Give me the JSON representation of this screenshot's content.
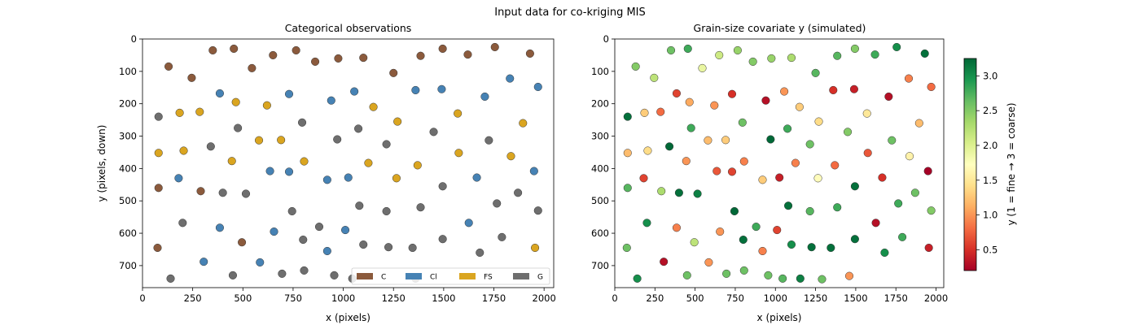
{
  "figure_title": "Input data for co-kriging MIS",
  "colors": {
    "C": "#8b5a3c",
    "Cl": "#4682b4",
    "FS": "#daa520",
    "G": "#6e6e6e"
  },
  "chart_data": [
    {
      "type": "scatter",
      "title": "Categorical observations",
      "xlabel": "x (pixels)",
      "ylabel": "y (pixels, down)",
      "xlim": [
        0,
        2048
      ],
      "ylim": [
        768,
        0
      ],
      "xticks": [
        0,
        250,
        500,
        750,
        1000,
        1250,
        1500,
        1750,
        2000
      ],
      "yticks": [
        0,
        100,
        200,
        300,
        400,
        500,
        600,
        700
      ],
      "legend": {
        "placement": "bottom-right",
        "entries": [
          "C",
          "Cl",
          "FS",
          "G"
        ]
      },
      "series": [
        {
          "name": "C",
          "points": [
            [
              130,
              85
            ],
            [
              245,
              120
            ],
            [
              350,
              35
            ],
            [
              455,
              30
            ],
            [
              545,
              90
            ],
            [
              650,
              50
            ],
            [
              765,
              35
            ],
            [
              860,
              70
            ],
            [
              975,
              60
            ],
            [
              1100,
              58
            ],
            [
              1250,
              105
            ],
            [
              1385,
              52
            ],
            [
              1495,
              30
            ],
            [
              1620,
              48
            ],
            [
              1755,
              25
            ],
            [
              1930,
              45
            ],
            [
              80,
              460
            ],
            [
              290,
              470
            ],
            [
              75,
              645
            ],
            [
              495,
              628
            ]
          ]
        },
        {
          "name": "Cl",
          "points": [
            [
              385,
              168
            ],
            [
              730,
              170
            ],
            [
              940,
              190
            ],
            [
              1055,
              162
            ],
            [
              1360,
              158
            ],
            [
              1490,
              155
            ],
            [
              1705,
              178
            ],
            [
              1830,
              122
            ],
            [
              1970,
              148
            ],
            [
              180,
              430
            ],
            [
              635,
              408
            ],
            [
              730,
              410
            ],
            [
              920,
              435
            ],
            [
              1025,
              428
            ],
            [
              1665,
              428
            ],
            [
              1950,
              408
            ],
            [
              385,
              583
            ],
            [
              655,
              595
            ],
            [
              1010,
              590
            ],
            [
              1625,
              568
            ],
            [
              305,
              688
            ],
            [
              585,
              690
            ],
            [
              920,
              655
            ]
          ]
        },
        {
          "name": "FS",
          "points": [
            [
              185,
              228
            ],
            [
              285,
              225
            ],
            [
              465,
              195
            ],
            [
              620,
              205
            ],
            [
              1150,
              210
            ],
            [
              1570,
              230
            ],
            [
              1895,
              260
            ],
            [
              80,
              352
            ],
            [
              205,
              345
            ],
            [
              580,
              313
            ],
            [
              690,
              312
            ],
            [
              1270,
              255
            ],
            [
              1575,
              352
            ],
            [
              445,
              377
            ],
            [
              805,
              378
            ],
            [
              1125,
              383
            ],
            [
              1370,
              390
            ],
            [
              1835,
              362
            ],
            [
              1265,
              430
            ],
            [
              1955,
              645
            ]
          ]
        },
        {
          "name": "G",
          "points": [
            [
              80,
              240
            ],
            [
              340,
              332
            ],
            [
              475,
              275
            ],
            [
              795,
              258
            ],
            [
              970,
              310
            ],
            [
              1075,
              277
            ],
            [
              1215,
              325
            ],
            [
              1450,
              287
            ],
            [
              1725,
              313
            ],
            [
              400,
              475
            ],
            [
              515,
              478
            ],
            [
              745,
              532
            ],
            [
              1080,
              515
            ],
            [
              1215,
              532
            ],
            [
              1385,
              520
            ],
            [
              1495,
              455
            ],
            [
              1765,
              508
            ],
            [
              1870,
              475
            ],
            [
              1970,
              530
            ],
            [
              200,
              568
            ],
            [
              800,
              620
            ],
            [
              880,
              580
            ],
            [
              1100,
              635
            ],
            [
              1225,
              643
            ],
            [
              1345,
              645
            ],
            [
              1495,
              618
            ],
            [
              1680,
              660
            ],
            [
              1790,
              612
            ],
            [
              140,
              740
            ],
            [
              450,
              730
            ],
            [
              695,
              725
            ],
            [
              805,
              715
            ],
            [
              955,
              730
            ],
            [
              1045,
              740
            ],
            [
              1360,
              740
            ]
          ]
        }
      ]
    },
    {
      "type": "scatter",
      "title": "Grain-size covariate y  (simulated)",
      "xlabel": "x (pixels)",
      "xlim": [
        0,
        2048
      ],
      "ylim": [
        768,
        0
      ],
      "xticks": [
        0,
        250,
        500,
        750,
        1000,
        1250,
        1500,
        1750,
        2000
      ],
      "yticks": [
        0,
        100,
        200,
        300,
        400,
        500,
        600,
        700
      ],
      "colorbar": {
        "label": "y  (1 = fine  →  3 = coarse)",
        "range": [
          0.2,
          3.25
        ],
        "ticks": [
          0.5,
          1.0,
          1.5,
          2.0,
          2.5,
          3.0
        ],
        "tick_labels": [
          "0.5",
          "1.0",
          "1.5",
          "2.0",
          "2.5",
          "3.0"
        ],
        "colormap": "RdYlGn"
      },
      "points": [
        [
          130,
          85,
          2.5
        ],
        [
          245,
          120,
          2.2
        ],
        [
          350,
          35,
          2.6
        ],
        [
          455,
          30,
          2.8
        ],
        [
          545,
          90,
          1.9
        ],
        [
          650,
          50,
          2.1
        ],
        [
          765,
          35,
          2.4
        ],
        [
          860,
          70,
          2.5
        ],
        [
          975,
          60,
          2.4
        ],
        [
          1100,
          58,
          2.3
        ],
        [
          1250,
          105,
          2.7
        ],
        [
          1385,
          52,
          2.7
        ],
        [
          1495,
          30,
          2.5
        ],
        [
          1620,
          48,
          2.8
        ],
        [
          1755,
          25,
          3.0
        ],
        [
          1930,
          45,
          3.2
        ],
        [
          385,
          168,
          0.6
        ],
        [
          730,
          170,
          0.5
        ],
        [
          940,
          190,
          0.3
        ],
        [
          1055,
          162,
          1.0
        ],
        [
          1360,
          158,
          0.5
        ],
        [
          1490,
          155,
          0.4
        ],
        [
          1705,
          178,
          0.3
        ],
        [
          1830,
          122,
          0.9
        ],
        [
          1970,
          148,
          0.8
        ],
        [
          185,
          228,
          1.3
        ],
        [
          285,
          225,
          0.8
        ],
        [
          465,
          195,
          1.1
        ],
        [
          620,
          205,
          1.0
        ],
        [
          1150,
          210,
          1.3
        ],
        [
          1570,
          230,
          1.5
        ],
        [
          1895,
          260,
          1.2
        ],
        [
          1270,
          255,
          1.4
        ],
        [
          80,
          240,
          3.2
        ],
        [
          340,
          332,
          3.3
        ],
        [
          475,
          275,
          2.8
        ],
        [
          795,
          258,
          2.6
        ],
        [
          970,
          310,
          3.3
        ],
        [
          1075,
          277,
          2.8
        ],
        [
          1215,
          325,
          2.6
        ],
        [
          1450,
          287,
          2.5
        ],
        [
          1725,
          313,
          2.6
        ],
        [
          80,
          352,
          1.2
        ],
        [
          205,
          345,
          1.4
        ],
        [
          580,
          313,
          1.2
        ],
        [
          690,
          312,
          1.3
        ],
        [
          1575,
          352,
          0.7
        ],
        [
          445,
          377,
          1.0
        ],
        [
          805,
          378,
          0.9
        ],
        [
          1125,
          383,
          0.9
        ],
        [
          1370,
          390,
          0.8
        ],
        [
          1835,
          362,
          1.6
        ],
        [
          180,
          430,
          0.6
        ],
        [
          635,
          408,
          0.7
        ],
        [
          730,
          410,
          0.6
        ],
        [
          920,
          435,
          1.3
        ],
        [
          1025,
          428,
          0.4
        ],
        [
          1265,
          430,
          1.7
        ],
        [
          1665,
          428,
          0.5
        ],
        [
          1950,
          408,
          0.2
        ],
        [
          80,
          460,
          2.7
        ],
        [
          290,
          470,
          2.3
        ],
        [
          400,
          475,
          3.2
        ],
        [
          515,
          478,
          3.1
        ],
        [
          745,
          532,
          3.3
        ],
        [
          1080,
          515,
          3.2
        ],
        [
          1215,
          532,
          2.7
        ],
        [
          1385,
          520,
          2.8
        ],
        [
          1495,
          455,
          3.2
        ],
        [
          1765,
          508,
          2.8
        ],
        [
          1870,
          475,
          2.6
        ],
        [
          1970,
          530,
          2.5
        ],
        [
          200,
          568,
          3.0
        ],
        [
          385,
          583,
          0.9
        ],
        [
          655,
          595,
          1.0
        ],
        [
          800,
          620,
          3.2
        ],
        [
          880,
          580,
          2.8
        ],
        [
          1010,
          590,
          0.6
        ],
        [
          1100,
          635,
          3.0
        ],
        [
          1225,
          643,
          3.2
        ],
        [
          1345,
          645,
          3.2
        ],
        [
          1495,
          618,
          3.2
        ],
        [
          1625,
          568,
          0.3
        ],
        [
          1680,
          660,
          3.0
        ],
        [
          1790,
          612,
          2.8
        ],
        [
          75,
          645,
          2.6
        ],
        [
          495,
          628,
          2.2
        ],
        [
          305,
          688,
          0.3
        ],
        [
          585,
          690,
          1.0
        ],
        [
          920,
          655,
          0.9
        ],
        [
          1955,
          645,
          0.4
        ],
        [
          140,
          740,
          3.0
        ],
        [
          450,
          730,
          2.6
        ],
        [
          695,
          725,
          2.6
        ],
        [
          805,
          715,
          2.6
        ],
        [
          955,
          730,
          2.6
        ],
        [
          1045,
          740,
          2.7
        ],
        [
          1155,
          740,
          3.1
        ],
        [
          1290,
          742,
          2.6
        ],
        [
          1460,
          732,
          1.0
        ]
      ]
    }
  ]
}
